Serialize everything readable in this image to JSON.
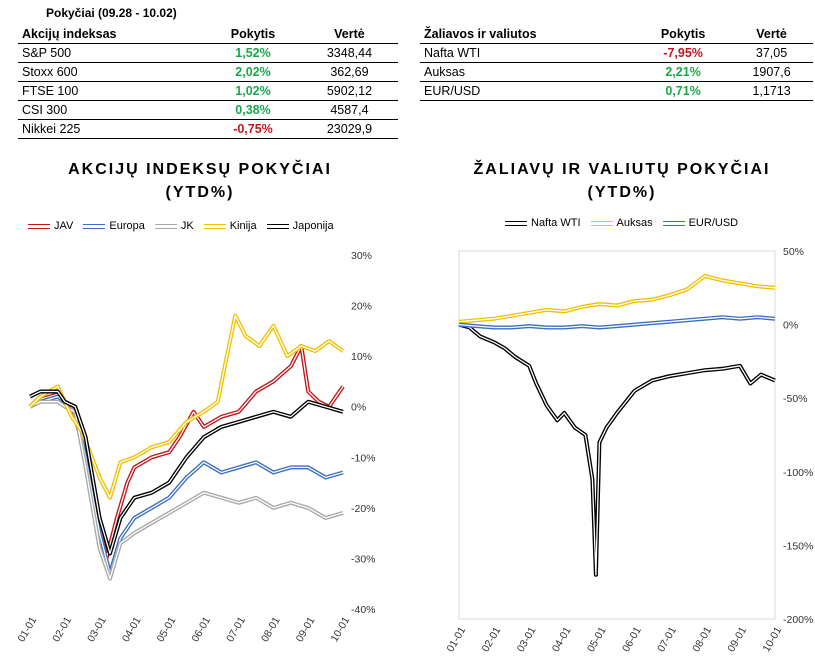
{
  "period_title": "Pokyčiai (09.28 - 10.02)",
  "table_indices": {
    "headers": [
      "Akcijų indeksas",
      "Pokytis",
      "Vertė"
    ],
    "rows": [
      {
        "name": "S&P 500",
        "change": "1,52%",
        "value": "3348,44",
        "sign": "pos"
      },
      {
        "name": "Stoxx 600",
        "change": "2,02%",
        "value": "362,69",
        "sign": "pos"
      },
      {
        "name": "FTSE 100",
        "change": "1,02%",
        "value": "5902,12",
        "sign": "pos"
      },
      {
        "name": "CSI 300",
        "change": "0,38%",
        "value": "4587,4",
        "sign": "pos"
      },
      {
        "name": "Nikkei 225",
        "change": "-0,75%",
        "value": "23029,9",
        "sign": "neg"
      }
    ]
  },
  "table_commodities": {
    "headers": [
      "Žaliavos ir valiutos",
      "Pokytis",
      "Vertė"
    ],
    "rows": [
      {
        "name": "Nafta WTI",
        "change": "-7,95%",
        "value": "37,05",
        "sign": "neg"
      },
      {
        "name": "Auksas",
        "change": "2,21%",
        "value": "1907,6",
        "sign": "pos"
      },
      {
        "name": "EUR/USD",
        "change": "0,71%",
        "value": "1,1713",
        "sign": "pos"
      }
    ]
  },
  "colors": {
    "positive": "#1aa84a",
    "negative": "#c0161b"
  },
  "chart_data": [
    {
      "type": "line",
      "title": "AKCIJŲ INDEKSŲ POKYČIAI (YTD%)",
      "x_ticks": [
        "01-01",
        "02-01",
        "03-01",
        "04-01",
        "05-01",
        "06-01",
        "07-01",
        "08-01",
        "09-01",
        "10-01"
      ],
      "y_ticks": [
        30,
        20,
        10,
        0,
        -10,
        -20,
        -30,
        -40
      ],
      "y_tick_labels": [
        "30%",
        "20%",
        "10%",
        "0%",
        "-10%",
        "-20%",
        "-30%",
        "-40%"
      ],
      "ylim": [
        -40,
        30
      ],
      "y_axis_side": "right",
      "legend_position": "top",
      "series": [
        {
          "name": "JAV",
          "color": "#c0161b",
          "points": [
            [
              0,
              0
            ],
            [
              0.3,
              2
            ],
            [
              0.8,
              3
            ],
            [
              1,
              1
            ],
            [
              1.2,
              0
            ],
            [
              1.5,
              -7
            ],
            [
              1.9,
              -20
            ],
            [
              2.2,
              -30
            ],
            [
              2.5,
              -22
            ],
            [
              2.8,
              -15
            ],
            [
              3,
              -12
            ],
            [
              3.5,
              -10
            ],
            [
              4,
              -9
            ],
            [
              4.3,
              -6
            ],
            [
              4.7,
              -1
            ],
            [
              5,
              -4
            ],
            [
              5.5,
              -2
            ],
            [
              6,
              -1
            ],
            [
              6.5,
              3
            ],
            [
              7,
              5
            ],
            [
              7.5,
              8
            ],
            [
              7.8,
              12
            ],
            [
              8,
              3
            ],
            [
              8.3,
              1
            ],
            [
              8.6,
              0
            ],
            [
              9,
              4
            ]
          ]
        },
        {
          "name": "Europa",
          "color": "#3a6fbf",
          "points": [
            [
              0,
              0
            ],
            [
              0.3,
              1
            ],
            [
              0.8,
              2
            ],
            [
              1,
              1
            ],
            [
              1.3,
              0
            ],
            [
              1.6,
              -10
            ],
            [
              2,
              -25
            ],
            [
              2.3,
              -33
            ],
            [
              2.6,
              -26
            ],
            [
              3,
              -22
            ],
            [
              3.5,
              -20
            ],
            [
              4,
              -18
            ],
            [
              4.5,
              -14
            ],
            [
              5,
              -11
            ],
            [
              5.5,
              -13
            ],
            [
              6,
              -12
            ],
            [
              6.5,
              -11
            ],
            [
              7,
              -13
            ],
            [
              7.5,
              -12
            ],
            [
              8,
              -12
            ],
            [
              8.5,
              -14
            ],
            [
              9,
              -13
            ]
          ]
        },
        {
          "name": "JK",
          "color": "#a8a8a8",
          "points": [
            [
              0,
              0
            ],
            [
              0.3,
              1
            ],
            [
              0.8,
              1
            ],
            [
              1,
              0
            ],
            [
              1.3,
              -1
            ],
            [
              1.6,
              -12
            ],
            [
              2,
              -28
            ],
            [
              2.3,
              -34
            ],
            [
              2.6,
              -27
            ],
            [
              3,
              -25
            ],
            [
              3.5,
              -23
            ],
            [
              4,
              -21
            ],
            [
              4.5,
              -19
            ],
            [
              5,
              -17
            ],
            [
              5.5,
              -18
            ],
            [
              6,
              -19
            ],
            [
              6.5,
              -18
            ],
            [
              7,
              -20
            ],
            [
              7.5,
              -19
            ],
            [
              8,
              -20
            ],
            [
              8.5,
              -22
            ],
            [
              9,
              -21
            ]
          ]
        },
        {
          "name": "Kinija",
          "color": "#f2c000",
          "points": [
            [
              0,
              0
            ],
            [
              0.3,
              2
            ],
            [
              0.8,
              4
            ],
            [
              1,
              1
            ],
            [
              1.2,
              -2
            ],
            [
              1.5,
              -5
            ],
            [
              2,
              -14
            ],
            [
              2.3,
              -18
            ],
            [
              2.6,
              -11
            ],
            [
              3,
              -10
            ],
            [
              3.5,
              -8
            ],
            [
              4,
              -7
            ],
            [
              4.5,
              -3
            ],
            [
              5,
              -1
            ],
            [
              5.4,
              1
            ],
            [
              5.6,
              8
            ],
            [
              5.9,
              18
            ],
            [
              6.2,
              14
            ],
            [
              6.6,
              12
            ],
            [
              7,
              16
            ],
            [
              7.4,
              10
            ],
            [
              7.8,
              12
            ],
            [
              8.2,
              11
            ],
            [
              8.6,
              13
            ],
            [
              9,
              11
            ]
          ]
        },
        {
          "name": "Japonija",
          "color": "#000000",
          "points": [
            [
              0,
              2
            ],
            [
              0.3,
              3
            ],
            [
              0.8,
              3
            ],
            [
              1,
              1
            ],
            [
              1.3,
              0
            ],
            [
              1.6,
              -6
            ],
            [
              2,
              -22
            ],
            [
              2.3,
              -29
            ],
            [
              2.6,
              -22
            ],
            [
              3,
              -18
            ],
            [
              3.5,
              -17
            ],
            [
              4,
              -15
            ],
            [
              4.5,
              -10
            ],
            [
              5,
              -6
            ],
            [
              5.5,
              -4
            ],
            [
              6,
              -3
            ],
            [
              6.5,
              -2
            ],
            [
              7,
              -1
            ],
            [
              7.5,
              -2
            ],
            [
              8,
              1
            ],
            [
              8.5,
              0
            ],
            [
              9,
              -1
            ]
          ]
        }
      ]
    },
    {
      "type": "line",
      "title": "ŽALIAVŲ IR VALIUTŲ POKYČIAI (YTD%)",
      "x_ticks": [
        "01-01",
        "02-01",
        "03-01",
        "04-01",
        "05-01",
        "06-01",
        "07-01",
        "08-01",
        "09-01",
        "10-01"
      ],
      "y_ticks": [
        50,
        0,
        -50,
        -100,
        -150,
        -200
      ],
      "y_tick_labels": [
        "50%",
        "0%",
        "-50%",
        "-100%",
        "-150%",
        "-200%"
      ],
      "ylim": [
        -200,
        50
      ],
      "y_axis_side": "right",
      "legend_position": "top",
      "series": [
        {
          "name": "Nafta WTI",
          "color": "#000000",
          "points": [
            [
              0,
              0
            ],
            [
              0.3,
              -2
            ],
            [
              0.6,
              -8
            ],
            [
              1,
              -12
            ],
            [
              1.3,
              -16
            ],
            [
              1.6,
              -22
            ],
            [
              2,
              -28
            ],
            [
              2.2,
              -40
            ],
            [
              2.5,
              -55
            ],
            [
              2.8,
              -65
            ],
            [
              3,
              -60
            ],
            [
              3.3,
              -70
            ],
            [
              3.6,
              -75
            ],
            [
              3.8,
              -105
            ],
            [
              3.9,
              -170
            ],
            [
              4,
              -80
            ],
            [
              4.2,
              -70
            ],
            [
              4.5,
              -60
            ],
            [
              5,
              -45
            ],
            [
              5.5,
              -38
            ],
            [
              6,
              -35
            ],
            [
              6.5,
              -33
            ],
            [
              7,
              -31
            ],
            [
              7.5,
              -30
            ],
            [
              8,
              -28
            ],
            [
              8.3,
              -40
            ],
            [
              8.6,
              -34
            ],
            [
              9,
              -38
            ]
          ]
        },
        {
          "name": "Auksas",
          "color": "#f2c000",
          "points": [
            [
              0,
              2
            ],
            [
              0.5,
              3
            ],
            [
              1,
              4
            ],
            [
              1.5,
              6
            ],
            [
              2,
              8
            ],
            [
              2.5,
              10
            ],
            [
              3,
              9
            ],
            [
              3.5,
              12
            ],
            [
              4,
              14
            ],
            [
              4.5,
              13
            ],
            [
              5,
              16
            ],
            [
              5.5,
              17
            ],
            [
              6,
              20
            ],
            [
              6.5,
              24
            ],
            [
              7,
              33
            ],
            [
              7.5,
              30
            ],
            [
              8,
              28
            ],
            [
              8.5,
              26
            ],
            [
              9,
              25
            ]
          ]
        },
        {
          "name": "EUR/USD",
          "color": "#3a6fbf",
          "points": [
            [
              0,
              0
            ],
            [
              0.5,
              -1
            ],
            [
              1,
              -2
            ],
            [
              1.5,
              -2
            ],
            [
              2,
              -1
            ],
            [
              2.5,
              -2
            ],
            [
              3,
              -2
            ],
            [
              3.5,
              -1
            ],
            [
              4,
              -2
            ],
            [
              4.5,
              -1
            ],
            [
              5,
              0
            ],
            [
              5.5,
              1
            ],
            [
              6,
              2
            ],
            [
              6.5,
              3
            ],
            [
              7,
              4
            ],
            [
              7.5,
              5
            ],
            [
              8,
              4
            ],
            [
              8.5,
              5
            ],
            [
              9,
              4
            ]
          ]
        }
      ]
    }
  ]
}
